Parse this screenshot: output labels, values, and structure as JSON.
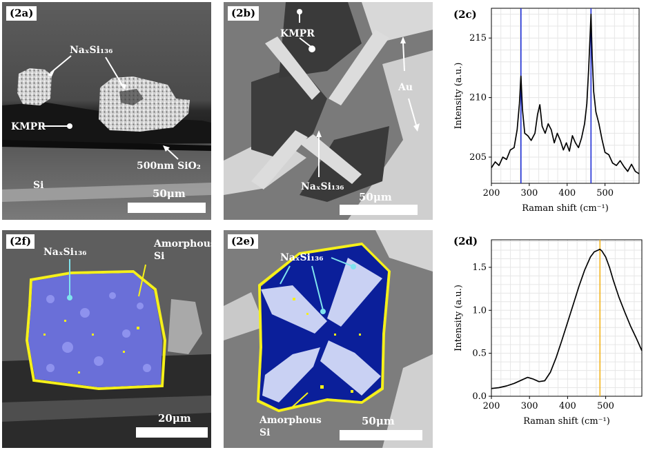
{
  "panels": {
    "a": {
      "tag": "(2a)",
      "label_naxsi": "NaₓSi₁₃₆",
      "label_kmpr": "KMPR",
      "label_sio2": "500nm SiO₂",
      "label_si": "Si",
      "scalebar": "50μm"
    },
    "b": {
      "tag": "(2b)",
      "label_kmpr": "KMPR",
      "label_au": "Au",
      "label_naxsi": "NaₓSi₁₃₆",
      "scalebar": "50μm"
    },
    "c": {
      "tag": "(2c)"
    },
    "d": {
      "tag": "(2d)"
    },
    "e": {
      "tag": "(2e)",
      "label_naxsi": "NaₓSi₁₃₆",
      "label_amorph_1": "Amorphous",
      "label_amorph_2": "Si",
      "scalebar": "50μm"
    },
    "f": {
      "tag": "(2f)",
      "label_naxsi": "NaₓSi₁₃₆",
      "label_amorph_1": "Amorphous",
      "label_amorph_2": "Si",
      "scalebar": "20μm"
    }
  },
  "colors": {
    "vline_c": "#1f2fd6",
    "vline_d": "#f2b21b",
    "yellow": "#f5f01a",
    "overlay_blue": "#0b1f9a",
    "overlay_violet": "#6a6fd8"
  },
  "chart_data": [
    {
      "type": "line",
      "panel": "(2c)",
      "title": "",
      "xlabel": "Raman shift (cm⁻¹)",
      "ylabel": "Intensity (a.u.)",
      "xlim": [
        200,
        590
      ],
      "ylim": [
        202.8,
        217.5
      ],
      "xticks": [
        200,
        300,
        400,
        500
      ],
      "yticks": [
        205,
        210,
        215
      ],
      "grid": true,
      "vlines": [
        278,
        463
      ],
      "series": [
        {
          "x": [
            200,
            210,
            220,
            230,
            240,
            250,
            260,
            268,
            274,
            278,
            282,
            288,
            296,
            305,
            315,
            322,
            328,
            334,
            342,
            350,
            358,
            366,
            374,
            382,
            390,
            398,
            406,
            414,
            422,
            430,
            438,
            446,
            452,
            457,
            461,
            463,
            466,
            470,
            476,
            484,
            492,
            500,
            510,
            520,
            530,
            540,
            550,
            560,
            570,
            580,
            590
          ],
          "y": [
            204.1,
            204.6,
            204.3,
            205.0,
            204.8,
            205.6,
            205.8,
            207.3,
            209.5,
            211.8,
            209.0,
            207.0,
            206.8,
            206.4,
            207.0,
            208.6,
            209.4,
            207.6,
            207.0,
            207.8,
            207.3,
            206.2,
            207.0,
            206.4,
            205.6,
            206.2,
            205.5,
            206.8,
            206.2,
            205.8,
            206.6,
            207.8,
            209.5,
            212.5,
            215.5,
            217.0,
            213.5,
            210.5,
            208.8,
            207.8,
            206.5,
            205.4,
            205.2,
            204.5,
            204.3,
            204.7,
            204.2,
            203.8,
            204.4,
            203.8,
            203.6
          ]
        }
      ]
    },
    {
      "type": "line",
      "panel": "(2d)",
      "title": "",
      "xlabel": "Raman shift (cm⁻¹)",
      "ylabel": "Intensity (a.u.)",
      "xlim": [
        200,
        595
      ],
      "ylim": [
        0,
        1.82
      ],
      "xticks": [
        200,
        300,
        400,
        500
      ],
      "yticks": [
        0.0,
        0.5,
        1.0,
        1.5
      ],
      "grid": true,
      "vlines": [
        485
      ],
      "series": [
        {
          "x": [
            200,
            220,
            240,
            260,
            280,
            295,
            310,
            325,
            340,
            355,
            370,
            385,
            400,
            415,
            430,
            445,
            460,
            470,
            480,
            485,
            490,
            500,
            510,
            520,
            535,
            550,
            565,
            580,
            595
          ],
          "y": [
            0.09,
            0.1,
            0.12,
            0.15,
            0.19,
            0.22,
            0.2,
            0.17,
            0.18,
            0.28,
            0.45,
            0.65,
            0.86,
            1.07,
            1.28,
            1.47,
            1.62,
            1.68,
            1.7,
            1.71,
            1.69,
            1.62,
            1.5,
            1.35,
            1.15,
            0.98,
            0.82,
            0.68,
            0.53
          ]
        }
      ]
    }
  ]
}
